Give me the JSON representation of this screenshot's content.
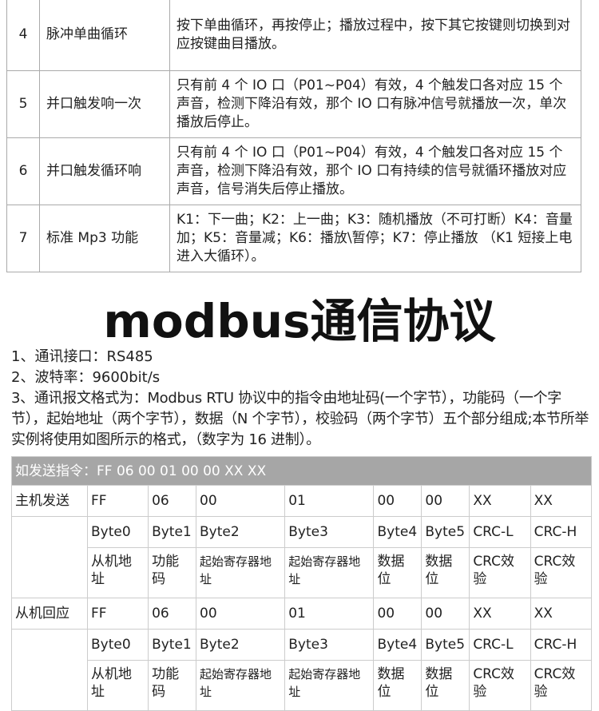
{
  "mode_table": [
    {
      "num": "4",
      "mode": "脉冲单曲循环",
      "desc": "按下单曲循环，再按停止；播放过程中，按下其它按键则切换到对应按键曲目播放。"
    },
    {
      "num": "5",
      "mode": "并口触发响一次",
      "desc": "只有前 4 个 IO 口（P01~P04）有效，4 个触发口各对应 15 个声音，检测下降沿有效，那个 IO 口有脉冲信号就播放一次，单次播放后停止。"
    },
    {
      "num": "6",
      "mode": "并口触发循环响",
      "desc": "只有前 4 个 IO 口（P01~P04）有效，4 个触发口各对应 15 个声音，检测下降沿有效，那个 IO 口有持续的信号就循环播放对应声音，信号消失后停止播放。"
    },
    {
      "num": "7",
      "mode": "标准 Mp3 功能",
      "desc": "K1：下一曲；K2：上一曲；K3：随机播放（不可打断）K4：音量加；K5：音量减；K6：播放\\暂停；K7：停止播放 （K1 短接上电进入大循环）。"
    }
  ],
  "title": "modbus通信协议",
  "paragraphs": [
    "1、通讯接口：RS485",
    "2、波特率：9600bit/s",
    "3、通讯报文格式为：Modbus RTU 协议中的指令由地址码(一个字节），功能码（一个字节），起始地址（两个字节），数据（N 个字节），校验码（两个字节）五个部分组成;本节所举实例将使用如图所示的格式，（数字为 16 进制）。"
  ],
  "frame_table": {
    "header": "如发送指令：FF 06 00 01 00 00 XX XX",
    "master_label": "主机发送",
    "slave_label": "从机回应",
    "values": [
      "FF",
      "06",
      "00",
      "01",
      "00",
      "00",
      "XX",
      "XX"
    ],
    "bytes": [
      "Byte0",
      "Byte1",
      "Byte2",
      "Byte3",
      "Byte4",
      "Byte5",
      "CRC-L",
      "CRC-H"
    ],
    "meanings": [
      "从机地址",
      "功能码",
      "起始寄存器地址",
      "起始寄存器地址",
      "数据位",
      "数据位",
      "CRC效验",
      "CRC效验"
    ]
  }
}
